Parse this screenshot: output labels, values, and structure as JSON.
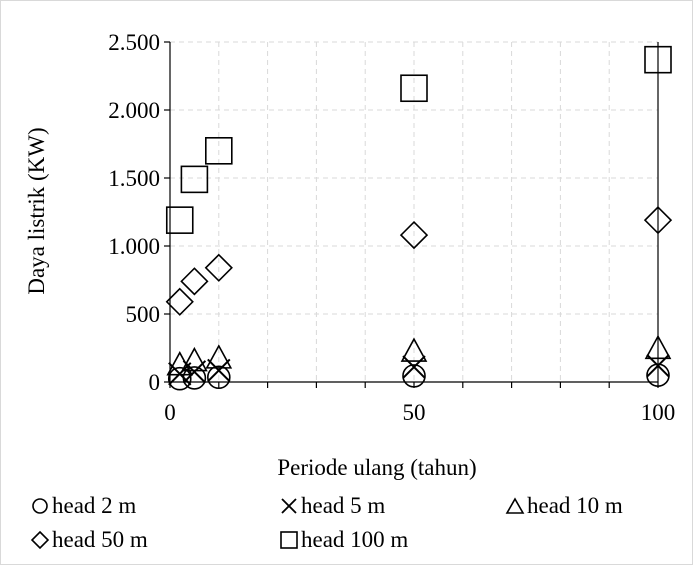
{
  "chart_data": {
    "type": "scatter",
    "xlabel": "Periode ulang (tahun)",
    "ylabel": "Daya listrik (KW)",
    "xlim": [
      0,
      100
    ],
    "ylim": [
      0,
      2500
    ],
    "x_ticks": [
      0,
      50,
      100
    ],
    "x_tick_labels": [
      "0",
      "",
      "",
      "",
      "",
      "50",
      "",
      "",
      "",
      "",
      "100"
    ],
    "x_gridlines": [
      0,
      10,
      20,
      30,
      40,
      50,
      60,
      70,
      80,
      90,
      100
    ],
    "y_ticks": [
      0,
      500,
      1000,
      1500,
      2000,
      2500
    ],
    "y_tick_labels": [
      "0",
      "500",
      "1.000",
      "1.500",
      "2.000",
      "2.500"
    ],
    "grid": true,
    "legend_position": "bottom",
    "x": [
      2,
      5,
      10,
      50,
      100
    ],
    "series": [
      {
        "name": "head 2 m",
        "marker": "circle",
        "values": [
          24,
          30,
          35,
          45,
          50
        ]
      },
      {
        "name": "head 5 m",
        "marker": "cross",
        "values": [
          60,
          75,
          85,
          110,
          120
        ]
      },
      {
        "name": "head 10 m",
        "marker": "triangle",
        "values": [
          120,
          150,
          170,
          220,
          240
        ]
      },
      {
        "name": "head 50 m",
        "marker": "diamond",
        "values": [
          590,
          740,
          840,
          1080,
          1190
        ]
      },
      {
        "name": "head 100 m",
        "marker": "square",
        "values": [
          1190,
          1490,
          1700,
          2160,
          2370
        ]
      }
    ]
  }
}
